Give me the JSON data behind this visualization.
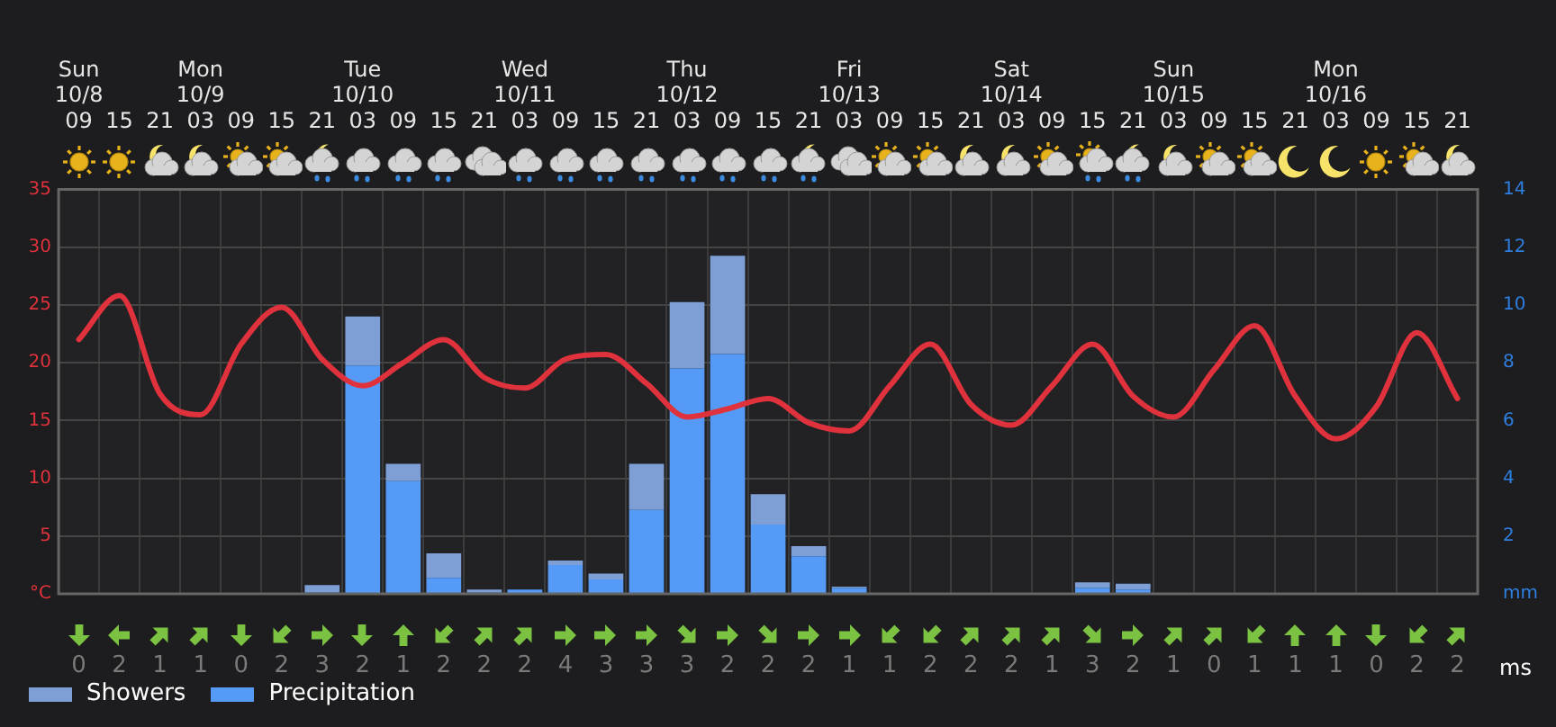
{
  "chart_data": [
    {
      "type": "bar",
      "categories": [
        "Sun\n10/8\n09",
        "15",
        "21",
        "Mon\n10/9\n03",
        "09",
        "15",
        "21",
        "Tue\n10/10\n03",
        "09",
        "15",
        "21",
        "Wed\n10/11\n03",
        "09",
        "15",
        "21",
        "Thu\n10/12\n03",
        "09",
        "15",
        "21",
        "Fri\n10/13\n03",
        "09",
        "15",
        "21",
        "Sat\n10/14\n03",
        "09",
        "15",
        "21",
        "Sun\n10/15\n03",
        "09",
        "15",
        "21",
        "Mon\n10/16\n03",
        "09",
        "15",
        "21"
      ],
      "series": [
        {
          "name": "Precipitation",
          "color": "#559af6",
          "axis": "y2",
          "values": [
            0,
            0,
            0,
            0,
            0,
            0,
            0.05,
            7.9,
            3.9,
            0.55,
            0.05,
            0.15,
            1.0,
            0.5,
            2.9,
            7.8,
            8.3,
            2.4,
            1.3,
            0.2,
            0,
            0,
            0,
            0,
            0,
            0.2,
            0.15,
            0,
            0,
            0,
            0,
            0,
            0,
            0,
            0
          ]
        },
        {
          "name": "Showers",
          "color": "#7d9fd6",
          "axis": "y2",
          "values": [
            0,
            0,
            0,
            0,
            0,
            0,
            0.25,
            1.7,
            0.6,
            0.85,
            0.1,
            0,
            0.15,
            0.2,
            1.6,
            2.3,
            3.4,
            1.05,
            0.35,
            0.05,
            0,
            0,
            0,
            0,
            0,
            0.2,
            0.2,
            0,
            0,
            0,
            0,
            0,
            0,
            0,
            null
          ]
        },
        {
          "type": "line",
          "color": "#e0323c",
          "axis": "y",
          "values": [
            22,
            25.8,
            17.3,
            15.5,
            21.6,
            24.8,
            20.3,
            18,
            20,
            22,
            18.7,
            17.8,
            20.3,
            20.7,
            18.2,
            15.3,
            16,
            16.9,
            14.8,
            14.1,
            18,
            21.6,
            16.4,
            14.6,
            18,
            21.6,
            17.1,
            15.3,
            19.4,
            23.2,
            17.1,
            13.4,
            16.2,
            22.6,
            16.9
          ]
        }
      ],
      "stacked": true,
      "ylim": [
        0,
        35
      ],
      "yticks": [
        {
          "value": 0,
          "label": "°C"
        },
        5,
        10,
        15,
        20,
        25,
        30,
        35
      ],
      "y2lim": [
        0,
        14
      ],
      "y2ticks": [
        {
          "value": 0,
          "label": "mm"
        },
        2,
        4,
        6,
        8,
        10,
        12,
        14
      ],
      "grid": true,
      "legend": "bottom left"
    },
    {
      "type": "other",
      "categories": [
        null,
        null,
        null,
        null,
        null,
        null,
        null,
        null,
        null,
        null,
        null,
        null,
        null,
        null,
        null,
        null,
        null,
        null,
        null,
        null,
        null,
        null,
        null,
        null,
        null,
        null,
        null,
        null,
        null,
        null,
        null,
        null,
        null,
        null,
        null
      ],
      "values": [
        0,
        2,
        1,
        1,
        0,
        2,
        3,
        2,
        1,
        2,
        2,
        2,
        4,
        3,
        3,
        3,
        2,
        2,
        2,
        1,
        1,
        2,
        2,
        2,
        1,
        3,
        2,
        1,
        0,
        1,
        1,
        1,
        0,
        2,
        2
      ],
      "data_labels": true,
      "xlabel": "ms"
    }
  ]
}
